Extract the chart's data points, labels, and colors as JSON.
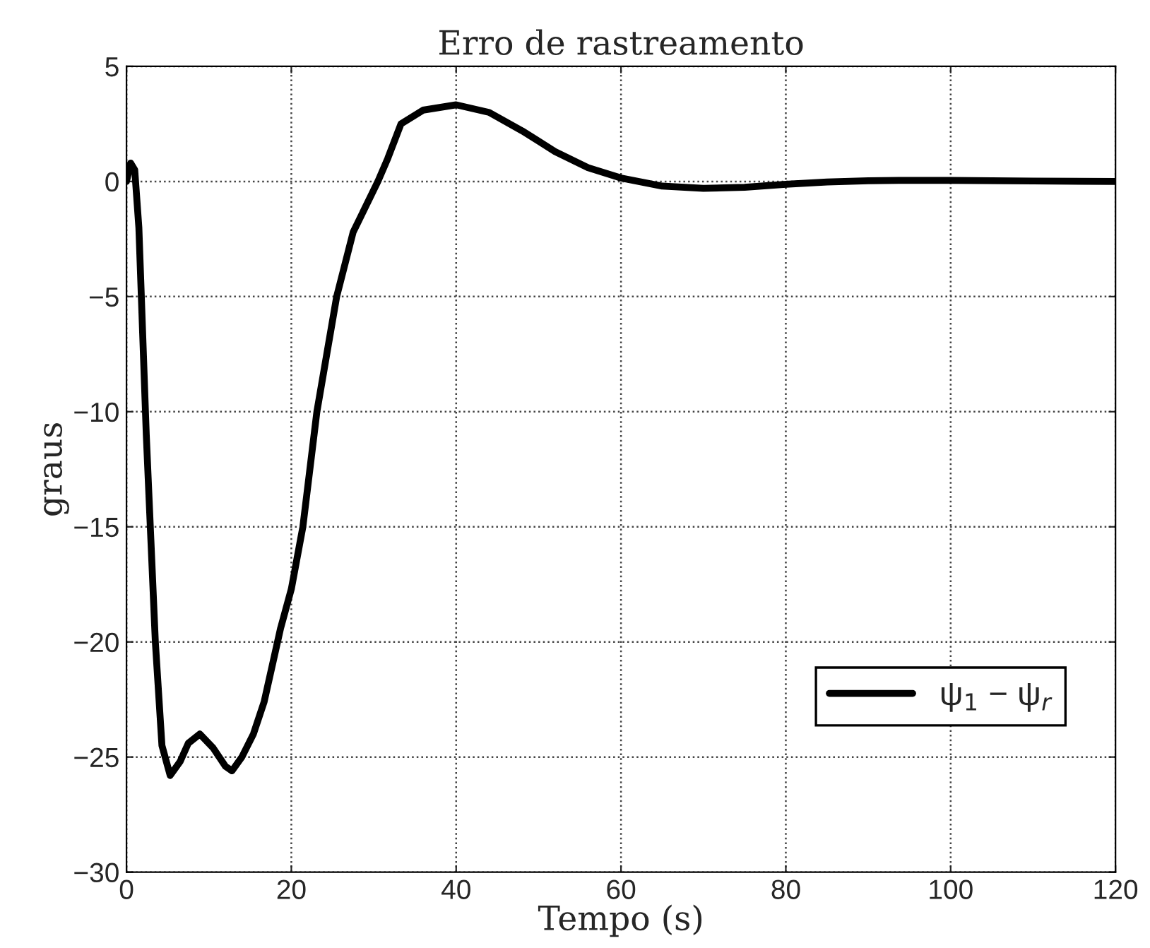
{
  "chart_data": {
    "type": "line",
    "title": "Erro de rastreamento",
    "xlabel": "Tempo (s)",
    "ylabel": "graus",
    "xlim": [
      0,
      120
    ],
    "xticks": [
      0,
      20,
      40,
      60,
      80,
      100,
      120
    ],
    "ylim": [
      -30,
      5
    ],
    "yticks": [
      -30,
      -25,
      -20,
      -15,
      -10,
      -5,
      0,
      5
    ],
    "grid": true,
    "legend": "bottom right",
    "line_style": "solid",
    "marker": "none",
    "series": [
      {
        "name": "ψ$_{1}$ − ψ$_{r}$",
        "color": "#000000",
        "x": [
          0,
          0.5,
          1,
          1.5,
          2.4,
          3.5,
          4.3,
          5.3,
          6.5,
          7.5,
          8.9,
          10.5,
          12,
          12.8,
          14,
          15.4,
          16.7,
          18.7,
          20,
          21.4,
          23.1,
          25.5,
          27.5,
          30.5,
          31.7,
          33.3,
          36,
          40,
          44,
          48,
          52,
          56,
          60,
          65,
          70,
          75,
          80,
          85,
          90,
          95,
          100,
          110,
          120
        ],
        "values": [
          0,
          0.8,
          0.5,
          -2,
          -11,
          -20,
          -24.5,
          -25.8,
          -25.2,
          -24.4,
          -24,
          -24.6,
          -25.4,
          -25.6,
          -25,
          -24,
          -22.6,
          -19.4,
          -17.7,
          -15,
          -10,
          -5,
          -2.2,
          0,
          1,
          2.5,
          3.1,
          3.33,
          3.0,
          2.2,
          1.3,
          0.6,
          0.15,
          -0.2,
          -0.3,
          -0.25,
          -0.12,
          -0.02,
          0.03,
          0.05,
          0.05,
          0.02,
          0
        ]
      }
    ]
  }
}
